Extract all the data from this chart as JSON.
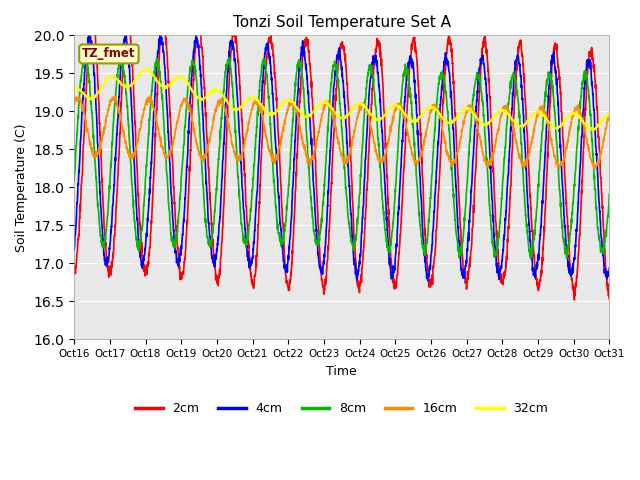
{
  "title": "Tonzi Soil Temperature Set A",
  "xlabel": "Time",
  "ylabel": "Soil Temperature (C)",
  "ylim": [
    16.0,
    20.0
  ],
  "yticks": [
    16.0,
    16.5,
    17.0,
    17.5,
    18.0,
    18.5,
    19.0,
    19.5,
    20.0
  ],
  "xtick_labels": [
    "Oct 16",
    "Oct 17",
    "Oct 18",
    "Oct 19",
    "Oct 20",
    "Oct 21",
    "Oct 22",
    "Oct 23",
    "Oct 24",
    "Oct 25",
    "Oct 26",
    "Oct 27",
    "Oct 28",
    "Oct 29",
    "Oct 30",
    "Oct 31"
  ],
  "annotation_text": "TZ_fmet",
  "annotation_color": "#8B0000",
  "annotation_bg": "#FFFFCC",
  "line_colors": [
    "#FF0000",
    "#0000FF",
    "#00BB00",
    "#FF8C00",
    "#FFFF00"
  ],
  "line_labels": [
    "2cm",
    "4cm",
    "8cm",
    "16cm",
    "32cm"
  ],
  "line_width": 1.2,
  "bg_color": "#E8E8E8",
  "fig_bg": "#FFFFFF",
  "total_hours": 360,
  "n_points": 2160
}
